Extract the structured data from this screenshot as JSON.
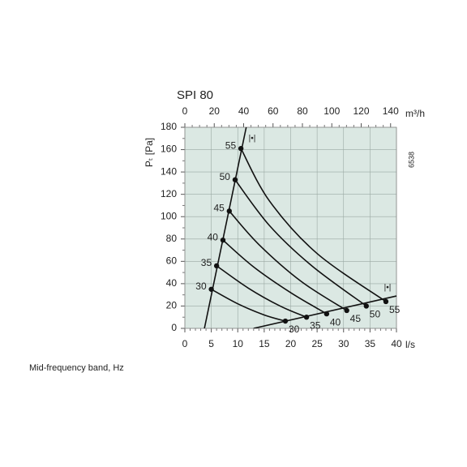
{
  "chart_data": {
    "type": "line",
    "title": "SPI 80",
    "x_label": "l/s",
    "x2_label": "m³/h",
    "y_label": "Pₜ [Pa]",
    "code": "6538",
    "marker": "|•|",
    "xlim": [
      0,
      40
    ],
    "xticks": [
      0,
      5,
      10,
      15,
      20,
      25,
      30,
      35,
      40
    ],
    "x2lim": [
      0,
      144
    ],
    "x2ticks": [
      0,
      20,
      40,
      60,
      80,
      100,
      120,
      140
    ],
    "ylim": [
      0,
      180
    ],
    "yticks": [
      0,
      20,
      40,
      60,
      80,
      100,
      120,
      140,
      160,
      180
    ],
    "grid": true,
    "background": "#dbe8e3",
    "color": "#111111",
    "limit_lines": [
      {
        "x": [
          3.7,
          11.6
        ],
        "values": [
          0,
          180
        ]
      },
      {
        "x": [
          13,
          40
        ],
        "values": [
          0,
          29
        ]
      }
    ],
    "series": [
      {
        "name": "30",
        "x": [
          5,
          10,
          15,
          19
        ],
        "values": [
          35,
          22,
          12,
          6.5
        ]
      },
      {
        "name": "35",
        "x": [
          6,
          12,
          18,
          23
        ],
        "values": [
          56,
          36,
          20,
          10
        ]
      },
      {
        "name": "40",
        "x": [
          7.2,
          13,
          20,
          26.8
        ],
        "values": [
          79,
          55,
          32,
          13
        ]
      },
      {
        "name": "45",
        "x": [
          8.4,
          14,
          22,
          30.6
        ],
        "values": [
          105,
          75,
          42,
          16
        ]
      },
      {
        "name": "50",
        "x": [
          9.5,
          16,
          24,
          34.3
        ],
        "values": [
          133,
          92,
          56,
          20
        ]
      },
      {
        "name": "55",
        "x": [
          10.6,
          16,
          25,
          38
        ],
        "values": [
          161,
          114,
          67,
          24
        ]
      }
    ]
  },
  "caption": "Mid-frequency band, Hz"
}
